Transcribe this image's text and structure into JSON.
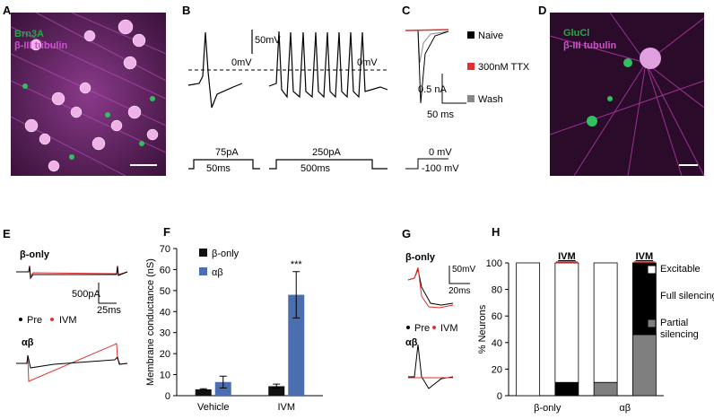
{
  "panels": {
    "labels": [
      "A",
      "B",
      "C",
      "D",
      "E",
      "G"
    ],
    "A": {
      "stain1": "Brn3A",
      "stain2": "β-III tubulin"
    },
    "B": {
      "scale_v": "50mV",
      "zero1": "0mV",
      "zero2": "0mV",
      "step1": "75pA",
      "dur1": "50ms",
      "step2": "250pA",
      "dur2": "500ms"
    },
    "C": {
      "legend": [
        "Naive",
        "300nM TTX",
        "Wash"
      ],
      "scale_i": "0.5 nA",
      "scale_t": "50 ms",
      "v_hold": "0 mV",
      "v_step": "-100 mV"
    },
    "D": {
      "stain1": "GluCl",
      "stain2": "β-III tubulin"
    },
    "E": {
      "top": "β-only",
      "scale_i": "500pA",
      "scale_t": "25ms",
      "pre": "Pre",
      "ivm": "IVM",
      "bottom": "αβ"
    },
    "G": {
      "top": "β-only",
      "scale_v": "50mV",
      "scale_t": "20ms",
      "pre": "Pre",
      "ivm": "IVM",
      "bottom": "αβ"
    }
  },
  "chart_data": [
    {
      "type": "bar",
      "label": "F",
      "ylabel": "Membrane conductance (nS)",
      "categories": [
        "Vehicle",
        "IVM"
      ],
      "series": [
        {
          "name": "β-only",
          "color": "#111111",
          "values": [
            3,
            4.5
          ],
          "errors": [
            0.3,
            1
          ]
        },
        {
          "name": "αβ",
          "color": "#4a6eb0",
          "values": [
            6.5,
            48
          ],
          "errors": [
            2.8,
            11
          ]
        }
      ],
      "annotation": "***",
      "ylim": [
        0,
        70
      ],
      "yticks": [
        0,
        10,
        20,
        30,
        40,
        50,
        60,
        70
      ]
    },
    {
      "type": "stacked-bar",
      "label": "H",
      "ylabel": "% Neurons",
      "categories": [
        null,
        "IVM",
        null,
        "IVM"
      ],
      "groups": [
        "β-only",
        "αβ"
      ],
      "series": [
        {
          "name": "Partial silencing",
          "color": "#7f7f7f",
          "values": [
            0,
            0,
            10,
            46
          ]
        },
        {
          "name": "Full silencing",
          "color": "#000000",
          "values": [
            0,
            10,
            0,
            54
          ]
        },
        {
          "name": "Excitable",
          "color": "#ffffff",
          "values": [
            100,
            90,
            90,
            0
          ]
        }
      ],
      "ylim": [
        0,
        100
      ],
      "yticks": [
        0,
        20,
        40,
        60,
        80,
        100
      ]
    }
  ]
}
